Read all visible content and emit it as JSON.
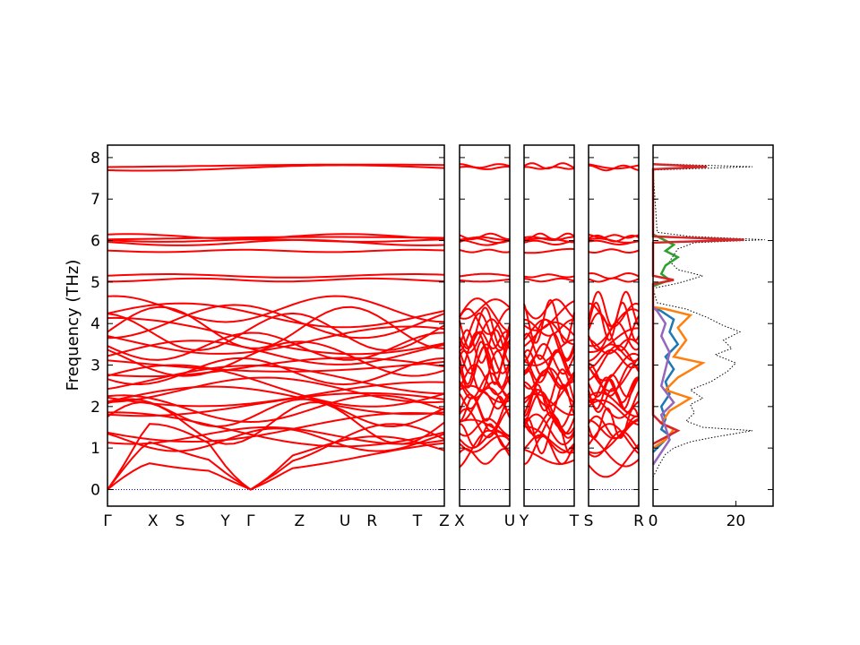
{
  "chart_data": {
    "type": "line",
    "ylabel": "Frequency (THz)",
    "ylim": [
      -0.4,
      8.3
    ],
    "yticks": [
      0,
      1,
      2,
      3,
      4,
      5,
      6,
      7,
      8
    ],
    "band_color": "#ff0000",
    "zero_line_color": "#0000cc",
    "dos_total_color": "#000000",
    "band_segments": [
      {
        "name": "main-path",
        "labels": [
          {
            "label": "Γ",
            "x": 0
          },
          {
            "label": "X",
            "x": 0.135
          },
          {
            "label": "S",
            "x": 0.215
          },
          {
            "label": "Y",
            "x": 0.35
          },
          {
            "label": "Γ",
            "x": 0.425
          },
          {
            "label": "Z",
            "x": 0.57
          },
          {
            "label": "U",
            "x": 0.705
          },
          {
            "label": "R",
            "x": 0.785
          },
          {
            "label": "T",
            "x": 0.92
          },
          {
            "label": "Z",
            "x": 1
          }
        ]
      },
      {
        "name": "x-u-path",
        "labels": [
          {
            "label": "X",
            "x": 0
          },
          {
            "label": "U",
            "x": 1
          }
        ]
      },
      {
        "name": "y-t-path",
        "labels": [
          {
            "label": "Y",
            "x": 0
          },
          {
            "label": "T",
            "x": 1
          }
        ]
      },
      {
        "name": "s-r-path",
        "labels": [
          {
            "label": "S",
            "x": 0
          },
          {
            "label": "R",
            "x": 1
          }
        ]
      }
    ],
    "dos_panel": {
      "xlim": [
        0,
        29
      ],
      "xticks": [
        0,
        20
      ],
      "series": [
        {
          "color": "#000000",
          "style": "dotted",
          "values": [
            [
              0,
              0.3
            ],
            [
              1.5,
              0.6
            ],
            [
              3,
              0.85
            ],
            [
              5,
              1.0
            ],
            [
              9,
              1.15
            ],
            [
              14,
              1.25
            ],
            [
              24,
              1.42
            ],
            [
              12,
              1.5
            ],
            [
              8,
              1.65
            ],
            [
              10,
              1.85
            ],
            [
              9,
              2.05
            ],
            [
              12,
              2.2
            ],
            [
              9,
              2.4
            ],
            [
              14,
              2.6
            ],
            [
              18,
              2.85
            ],
            [
              20,
              3.05
            ],
            [
              15,
              3.25
            ],
            [
              19,
              3.4
            ],
            [
              17,
              3.6
            ],
            [
              21,
              3.8
            ],
            [
              17,
              3.95
            ],
            [
              13,
              4.15
            ],
            [
              8,
              4.35
            ],
            [
              1,
              4.5
            ],
            [
              0,
              4.85
            ],
            [
              5,
              4.95
            ],
            [
              7,
              5.0
            ],
            [
              12,
              5.15
            ],
            [
              6,
              5.3
            ],
            [
              4,
              5.5
            ],
            [
              6,
              5.8
            ],
            [
              10,
              5.95
            ],
            [
              27,
              6.02
            ],
            [
              9,
              6.1
            ],
            [
              1,
              6.2
            ],
            [
              0,
              7.7
            ],
            [
              24,
              7.78
            ],
            [
              0,
              7.85
            ]
          ]
        },
        {
          "color": "#1f77b4",
          "style": "solid",
          "values": [
            [
              0,
              0.9
            ],
            [
              2,
              1.1
            ],
            [
              4,
              1.3
            ],
            [
              2,
              1.45
            ],
            [
              3,
              1.7
            ],
            [
              2,
              2.0
            ],
            [
              4,
              2.3
            ],
            [
              3,
              2.6
            ],
            [
              5,
              2.9
            ],
            [
              3,
              3.2
            ],
            [
              6,
              3.5
            ],
            [
              4,
              3.8
            ],
            [
              5,
              4.1
            ],
            [
              2,
              4.3
            ],
            [
              0,
              4.4
            ]
          ]
        },
        {
          "color": "#ff7f0e",
          "style": "solid",
          "values": [
            [
              0,
              1.0
            ],
            [
              3,
              1.2
            ],
            [
              5,
              1.45
            ],
            [
              2,
              1.6
            ],
            [
              4,
              1.9
            ],
            [
              9,
              2.2
            ],
            [
              3,
              2.4
            ],
            [
              6,
              2.7
            ],
            [
              12,
              3.05
            ],
            [
              5,
              3.2
            ],
            [
              8,
              3.6
            ],
            [
              6,
              3.9
            ],
            [
              9,
              4.2
            ],
            [
              3,
              4.35
            ],
            [
              0,
              4.4
            ]
          ]
        },
        {
          "color": "#2ca02c",
          "style": "solid",
          "values": [
            [
              0,
              4.9
            ],
            [
              4,
              5.05
            ],
            [
              2,
              5.2
            ],
            [
              3,
              5.4
            ],
            [
              6,
              5.6
            ],
            [
              3,
              5.75
            ],
            [
              5,
              5.9
            ],
            [
              2,
              6.05
            ],
            [
              0,
              6.15
            ]
          ]
        },
        {
          "color": "#d62728",
          "style": "solid",
          "values": [
            [
              0,
              1.1
            ],
            [
              6,
              1.42
            ],
            [
              2,
              1.6
            ],
            [
              0,
              1.8
            ],
            [
              0,
              4.95
            ],
            [
              5,
              5.05
            ],
            [
              0,
              5.15
            ],
            [
              0,
              5.95
            ],
            [
              22,
              6.02
            ],
            [
              0,
              6.1
            ],
            [
              0,
              7.72
            ],
            [
              13,
              7.78
            ],
            [
              0,
              7.84
            ]
          ]
        },
        {
          "color": "#9467bd",
          "style": "solid",
          "values": [
            [
              0,
              0.6
            ],
            [
              2,
              0.9
            ],
            [
              4,
              1.2
            ],
            [
              3,
              1.5
            ],
            [
              2,
              1.8
            ],
            [
              5,
              2.1
            ],
            [
              2,
              2.5
            ],
            [
              3,
              2.9
            ],
            [
              4,
              3.3
            ],
            [
              2,
              3.7
            ],
            [
              3,
              4.0
            ],
            [
              1,
              4.3
            ],
            [
              0,
              4.4
            ]
          ]
        }
      ]
    }
  }
}
